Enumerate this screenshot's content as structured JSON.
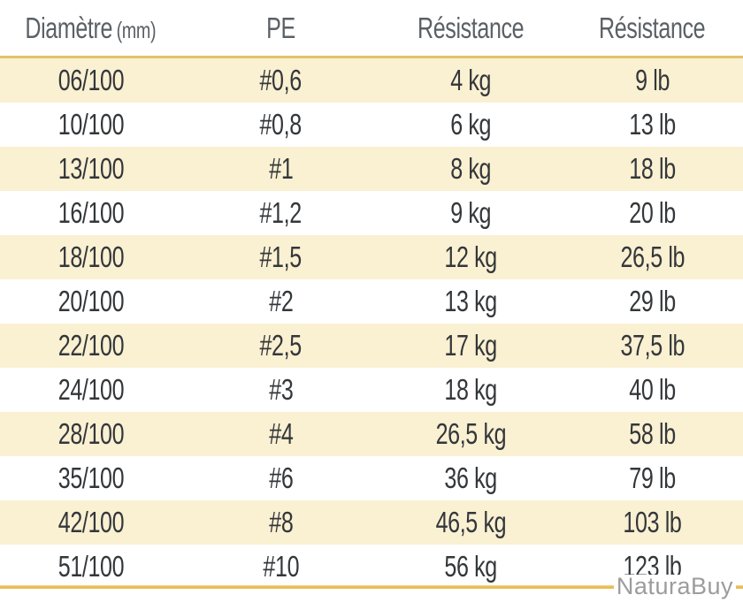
{
  "chart_data": {
    "type": "table",
    "columns": [
      {
        "label": "Diamètre",
        "unit": "(mm)",
        "key": "diametre"
      },
      {
        "label": "PE",
        "unit": "",
        "key": "pe"
      },
      {
        "label": "Résistance",
        "unit": "",
        "key": "resistance_kg"
      },
      {
        "label": "Résistance",
        "unit": "",
        "key": "resistance_lb"
      }
    ],
    "rows": [
      [
        "06/100",
        "#0,6",
        "4 kg",
        "9 lb"
      ],
      [
        "10/100",
        "#0,8",
        "6 kg",
        "13 lb"
      ],
      [
        "13/100",
        "#1",
        "8 kg",
        "18 lb"
      ],
      [
        "16/100",
        "#1,2",
        "9 kg",
        "20 lb"
      ],
      [
        "18/100",
        "#1,5",
        "12 kg",
        "26,5 lb"
      ],
      [
        "20/100",
        "#2",
        "13 kg",
        "29 lb"
      ],
      [
        "22/100",
        "#2,5",
        "17 kg",
        "37,5 lb"
      ],
      [
        "24/100",
        "#3",
        "18 kg",
        "40 lb"
      ],
      [
        "28/100",
        "#4",
        "26,5 kg",
        "58 lb"
      ],
      [
        "35/100",
        "#6",
        "36 kg",
        "79 lb"
      ],
      [
        "42/100",
        "#8",
        "46,5 kg",
        "103 lb"
      ],
      [
        "51/100",
        "#10",
        "56 kg",
        "123 lb"
      ]
    ]
  },
  "watermark": {
    "text": "NaturaBuy"
  },
  "colors": {
    "row_alt": "#faf0d2",
    "row_base": "#ffffff",
    "header_text": "#5a6166",
    "body_text": "#33373a",
    "accent_gold": "#e5b94b",
    "accent_gold_light": "#e0c46d",
    "watermark_gray": "#9c9c9c"
  }
}
